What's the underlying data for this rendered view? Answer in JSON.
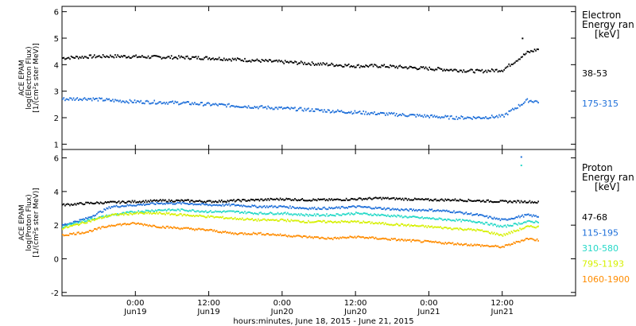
{
  "chart_data": [
    {
      "type": "scatter",
      "ylabel_lines": [
        "ACE EPAM",
        "log(Electron Flux)",
        "[1/(cm²s ster MeV)]"
      ],
      "ylim": [
        0.8,
        6.2
      ],
      "yticks": [
        1,
        2,
        3,
        4,
        5,
        6
      ],
      "legend_title_lines": [
        "Electron",
        "Energy ran",
        "[keV]"
      ],
      "x_hours": [
        0,
        4,
        8,
        12,
        16,
        20,
        24,
        28,
        32,
        36,
        40,
        44,
        48,
        52,
        56,
        60,
        64,
        68,
        72,
        76,
        78
      ],
      "series": [
        {
          "name": "38-53",
          "color": "#000000",
          "values": [
            4.25,
            4.3,
            4.32,
            4.3,
            4.28,
            4.27,
            4.25,
            4.2,
            4.15,
            4.1,
            4.05,
            4.0,
            3.95,
            3.95,
            3.9,
            3.85,
            3.8,
            3.75,
            3.8,
            4.45,
            4.6
          ]
        },
        {
          "name": "175-315",
          "color": "#1e6fd9",
          "values": [
            2.7,
            2.72,
            2.65,
            2.6,
            2.58,
            2.55,
            2.5,
            2.45,
            2.4,
            2.35,
            2.3,
            2.25,
            2.2,
            2.15,
            2.1,
            2.05,
            2.0,
            2.0,
            2.05,
            2.65,
            2.6
          ]
        }
      ]
    },
    {
      "type": "scatter",
      "ylabel_lines": [
        "ACE EPAM",
        "log(Proton Flux)",
        "[1/(cm²s ster MeV)]"
      ],
      "ylim": [
        -2.2,
        6.5
      ],
      "yticks": [
        -2,
        0,
        2,
        4,
        6
      ],
      "legend_title_lines": [
        "Proton",
        "Energy ran",
        "[keV]"
      ],
      "x_hours": [
        0,
        4,
        8,
        12,
        16,
        20,
        24,
        28,
        32,
        36,
        40,
        44,
        48,
        52,
        56,
        60,
        64,
        68,
        72,
        76,
        78
      ],
      "series": [
        {
          "name": "47-68",
          "color": "#000000",
          "values": [
            3.2,
            3.3,
            3.35,
            3.4,
            3.45,
            3.45,
            3.4,
            3.45,
            3.5,
            3.55,
            3.5,
            3.5,
            3.55,
            3.6,
            3.55,
            3.5,
            3.5,
            3.45,
            3.4,
            3.4,
            3.35
          ]
        },
        {
          "name": "115-195",
          "color": "#1e6fd9",
          "values": [
            2.0,
            2.4,
            3.1,
            3.2,
            3.3,
            3.3,
            3.2,
            3.2,
            3.1,
            3.1,
            3.0,
            3.0,
            3.1,
            3.0,
            2.9,
            2.9,
            2.8,
            2.6,
            2.3,
            2.6,
            2.5
          ]
        },
        {
          "name": "310-580",
          "color": "#26d9c8",
          "values": [
            1.9,
            2.3,
            2.6,
            2.8,
            2.9,
            2.9,
            2.8,
            2.8,
            2.7,
            2.7,
            2.6,
            2.6,
            2.7,
            2.6,
            2.5,
            2.4,
            2.3,
            2.2,
            1.9,
            2.2,
            2.2
          ]
        },
        {
          "name": "795-1193",
          "color": "#d6f000",
          "values": [
            1.8,
            2.2,
            2.6,
            2.7,
            2.7,
            2.6,
            2.5,
            2.4,
            2.3,
            2.3,
            2.2,
            2.2,
            2.2,
            2.1,
            2.0,
            1.9,
            1.8,
            1.7,
            1.4,
            1.9,
            1.9
          ]
        },
        {
          "name": "1060-1900",
          "color": "#ff8c00",
          "values": [
            1.4,
            1.6,
            2.0,
            2.1,
            1.9,
            1.8,
            1.7,
            1.5,
            1.5,
            1.4,
            1.3,
            1.2,
            1.3,
            1.2,
            1.1,
            1.0,
            0.9,
            0.8,
            0.7,
            1.2,
            1.1
          ]
        }
      ]
    }
  ],
  "x_axis": {
    "range_hours": [
      0,
      84
    ],
    "ticks": [
      {
        "hour": 12,
        "label": "0:00",
        "date": "Jun19"
      },
      {
        "hour": 24,
        "label": "12:00",
        "date": "Jun19"
      },
      {
        "hour": 36,
        "label": "0:00",
        "date": "Jun20"
      },
      {
        "hour": 48,
        "label": "12:00",
        "date": "Jun20"
      },
      {
        "hour": 60,
        "label": "0:00",
        "date": "Jun21"
      },
      {
        "hour": 72,
        "label": "12:00",
        "date": "Jun21"
      }
    ],
    "xlabel": "hours:minutes, June 18, 2015 - June 21, 2015"
  },
  "scatter_points": [
    {
      "panel": 0,
      "series": 0,
      "hour": 75.2,
      "value": 5.02
    },
    {
      "panel": 1,
      "series": 1,
      "hour": 75.0,
      "value": 6.1
    },
    {
      "panel": 1,
      "series": 2,
      "hour": 75.0,
      "value": 5.6
    }
  ]
}
